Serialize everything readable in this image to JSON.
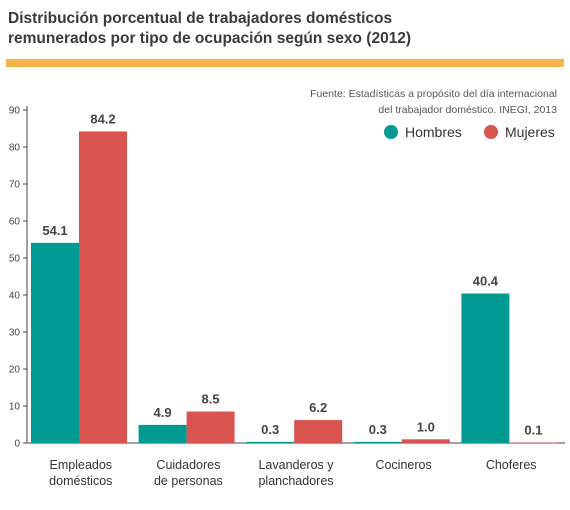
{
  "header": {
    "title_line1": "Distribución porcentual  de trabajadores domésticos",
    "title_line2": "remunerados por tipo de ocupación según sexo (2012)",
    "source_line1": "Fuente: Estadísticas a propósito del día internacional",
    "source_line2": "del trabajador doméstico. INEGI, 2013"
  },
  "colors": {
    "hombres": "#009a93",
    "mujeres": "#d9534f",
    "accent_rule": "#f4b44a"
  },
  "chart_data": {
    "type": "bar",
    "title": "Distribución porcentual  de trabajadores domésticos remunerados por tipo de ocupación según sexo (2012)",
    "categories": [
      [
        "Empleados",
        "domésticos"
      ],
      [
        "Cuidadores",
        "de personas"
      ],
      [
        "Lavanderos y",
        "planchadores"
      ],
      [
        "Cocineros"
      ],
      [
        "Choferes"
      ]
    ],
    "series": [
      {
        "name": "Hombres",
        "values": [
          54.1,
          4.9,
          0.3,
          0.3,
          40.4
        ]
      },
      {
        "name": "Mujeres",
        "values": [
          84.2,
          8.5,
          6.2,
          1.0,
          0.1
        ]
      }
    ],
    "data_labels": [
      [
        "54.1",
        "4.9",
        "0.3",
        "0.3",
        "40.4"
      ],
      [
        "84.2",
        "8.5",
        "6.2",
        "1.0",
        "0.1"
      ]
    ],
    "ylim": [
      0,
      90
    ],
    "yticks": [
      "0",
      "10",
      "20",
      "30",
      "40",
      "50",
      "60",
      "70",
      "80",
      "90"
    ],
    "xlabel": "",
    "ylabel": "",
    "grid": false,
    "legend": "top-right"
  }
}
